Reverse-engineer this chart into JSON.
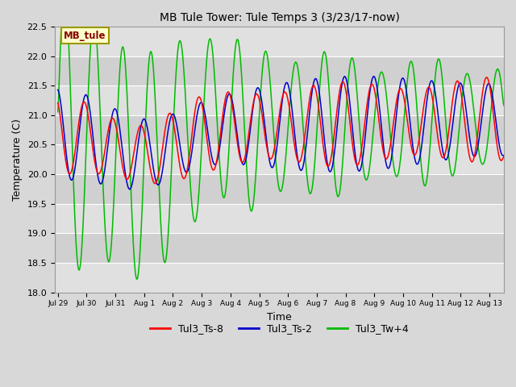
{
  "title": "MB Tule Tower: Tule Temps 3 (3/23/17-now)",
  "xlabel": "Time",
  "ylabel": "Temperature (C)",
  "ylim": [
    18.0,
    22.5
  ],
  "yticks": [
    18.0,
    18.5,
    19.0,
    19.5,
    20.0,
    20.5,
    21.0,
    21.5,
    22.0,
    22.5
  ],
  "bg_color": "#d8d8d8",
  "plot_bg_alt1": "#d0d0d0",
  "plot_bg_alt2": "#e0e0e0",
  "grid_color": "#ffffff",
  "legend_label": "MB_tule",
  "legend_box_color": "#ffffcc",
  "legend_box_edge": "#999900",
  "legend_text_color": "#880000",
  "series": [
    {
      "name": "Tul3_Ts-8",
      "color": "#ff0000"
    },
    {
      "name": "Tul3_Ts-2",
      "color": "#0000cc"
    },
    {
      "name": "Tul3_Tw+4",
      "color": "#00bb00"
    }
  ],
  "x_tick_labels": [
    "Jul 29",
    "Jul 30",
    "Jul 31",
    "Aug 1",
    "Aug 2",
    "Aug 3",
    "Aug 4",
    "Aug 5",
    "Aug 6",
    "Aug 7",
    "Aug 8",
    "Aug 9",
    "Aug 10",
    "Aug 11",
    "Aug 12",
    "Aug 13"
  ],
  "x_tick_positions": [
    0,
    1,
    2,
    3,
    4,
    5,
    6,
    7,
    8,
    9,
    10,
    11,
    12,
    13,
    14,
    15
  ]
}
